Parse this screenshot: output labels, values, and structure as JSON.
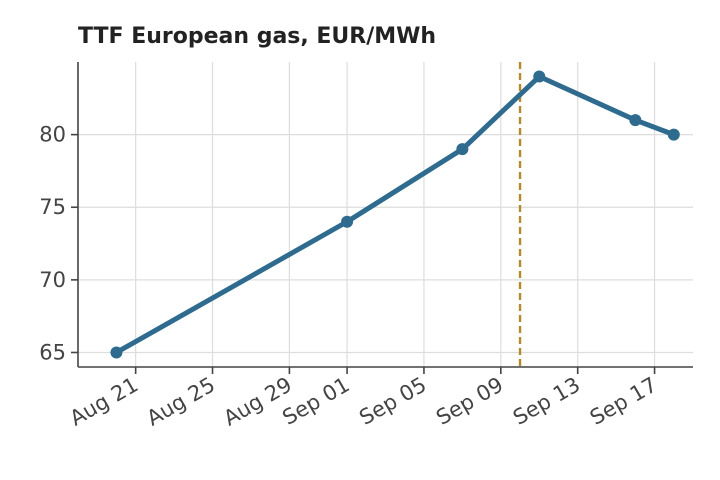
{
  "chart_data": {
    "type": "line",
    "title": "TTF European gas, EUR/MWh",
    "xlabel": "",
    "ylabel": "",
    "x_type": "date",
    "xlim": [
      "2023-08-18",
      "2023-09-19"
    ],
    "ylim": [
      64,
      85
    ],
    "x_ticks": [
      {
        "value": "2023-08-21",
        "label": "Aug 21"
      },
      {
        "value": "2023-08-25",
        "label": "Aug 25"
      },
      {
        "value": "2023-08-29",
        "label": "Aug 29"
      },
      {
        "value": "2023-09-01",
        "label": "Sep 01"
      },
      {
        "value": "2023-09-05",
        "label": "Sep 05"
      },
      {
        "value": "2023-09-09",
        "label": "Sep 09"
      },
      {
        "value": "2023-09-13",
        "label": "Sep 13"
      },
      {
        "value": "2023-09-17",
        "label": "Sep 17"
      }
    ],
    "y_ticks": [
      65,
      70,
      75,
      80
    ],
    "grid": true,
    "series": [
      {
        "x": [
          "2023-08-20",
          "2023-09-01",
          "2023-09-07",
          "2023-09-11",
          "2023-09-16",
          "2023-09-18"
        ],
        "values": [
          65,
          74,
          79,
          84,
          81,
          80
        ]
      }
    ],
    "vertical_line": {
      "x": "2023-09-10",
      "style": "dashed"
    },
    "colors": {
      "series": "#2e6b8e",
      "vertical_line": "#b38a2e",
      "grid": "#dddddd",
      "axis": "#444444",
      "text": "#444444"
    }
  }
}
